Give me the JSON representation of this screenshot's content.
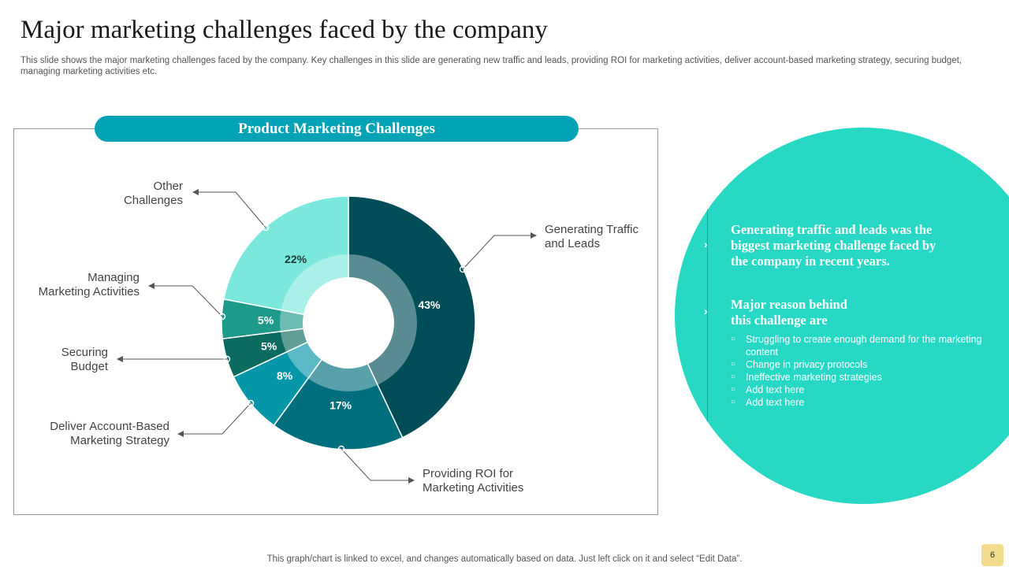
{
  "slide": {
    "title": "Major marketing challenges faced by the company",
    "subtitle": "This slide shows the major marketing challenges faced by the company. Key challenges in this slide are generating new traffic and leads, providing ROI for marketing activities, deliver account-based marketing strategy, securing budget, managing marketing activities etc.",
    "footer": "This graph/chart is linked to excel,  and changes automatically based on data. Just left click on it and select “Edit Data”.",
    "page_number": "6"
  },
  "chart_data": {
    "type": "pie",
    "variant": "donut",
    "title": "Product Marketing Challenges",
    "unit": "%",
    "categories": [
      "Generating Traffic and Leads",
      "Providing ROI for Marketing Activities",
      "Deliver Account-Based Marketing Strategy",
      "Securing Budget",
      "Managing Marketing Activities",
      "Other Challenges"
    ],
    "values": [
      43,
      17,
      8,
      5,
      5,
      22
    ],
    "labels": [
      "43%",
      "17%",
      "8%",
      "5%",
      "5%",
      "22%"
    ],
    "colors": [
      "#004d5a",
      "#006f7d",
      "#0596a8",
      "#0c6b60",
      "#1d9a8a",
      "#7ae8dc"
    ],
    "callouts": {
      "traffic": [
        "Generating Traffic",
        "and Leads"
      ],
      "roi": [
        "Providing ROI for",
        "Marketing Activities"
      ],
      "abm": [
        "Deliver Account-Based",
        "Marketing Strategy"
      ],
      "budget": [
        "Securing",
        "Budget"
      ],
      "managing": [
        "Managing",
        "Marketing Activities"
      ],
      "other": [
        "Other",
        "Challenges"
      ]
    }
  },
  "insight": {
    "heading": [
      "Generating traffic and leads was the",
      "biggest marketing challenge faced by",
      "the company in recent years."
    ],
    "reason_heading": [
      "Major  reason behind",
      "this challenge are"
    ],
    "reasons": [
      "Struggling to create enough demand for the marketing content",
      "Change  in privacy  protocols",
      "Ineffective  marketing strategies",
      "Add text here",
      "Add text here"
    ],
    "bullet_symbol": "○",
    "chevron_symbol": "›"
  }
}
